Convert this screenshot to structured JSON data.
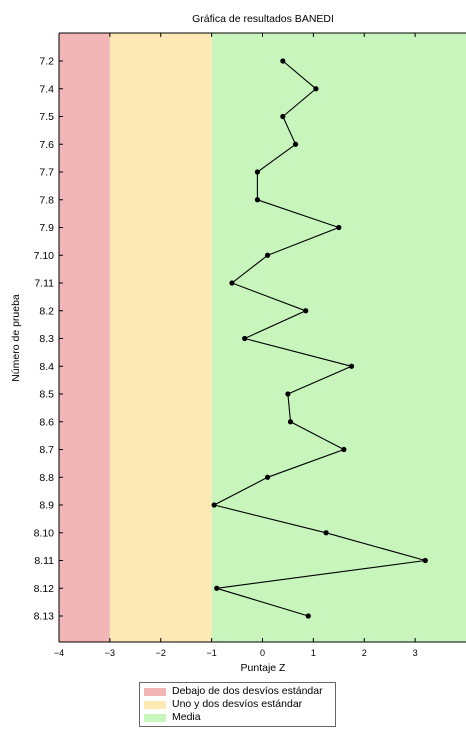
{
  "chart_data": {
    "type": "line",
    "title": "Gráfica de resultados BANEDI",
    "xlabel": "Puntaje Z",
    "ylabel": "Número de prueba",
    "xlim": [
      -4,
      4
    ],
    "x_ticks": [
      "−4",
      "−3",
      "−2",
      "−1",
      "0",
      "1",
      "2",
      "3"
    ],
    "x_tick_values": [
      -4,
      -3,
      -2,
      -1,
      0,
      1,
      2,
      3
    ],
    "categories": [
      "7.2",
      "7.4",
      "7.5",
      "7.6",
      "7.7",
      "7.8",
      "7.9",
      "7.10",
      "7.11",
      "8.2",
      "8.3",
      "8.4",
      "8.5",
      "8.6",
      "8.7",
      "8.8",
      "8.9",
      "8.10",
      "8.11",
      "8.12",
      "8.13"
    ],
    "series": [
      {
        "values": [
          0.4,
          1.05,
          0.4,
          0.65,
          -0.1,
          -0.1,
          1.5,
          0.1,
          -0.6,
          0.85,
          -0.35,
          1.75,
          0.5,
          0.55,
          1.6,
          0.1,
          -0.95,
          1.25,
          3.2,
          -0.9,
          0.9
        ]
      }
    ],
    "bands": [
      {
        "label": "Debajo de dos desvíos estándar",
        "from": -4,
        "to": -3,
        "color": "#f2b6b6"
      },
      {
        "label": "Uno y dos desvíos estándar",
        "from": -3,
        "to": -1,
        "color": "#fde9b4"
      },
      {
        "label": "Media",
        "from": -1,
        "to": 4,
        "color": "#c7f5bc"
      }
    ],
    "legend_position": "bottom",
    "grid": false
  }
}
